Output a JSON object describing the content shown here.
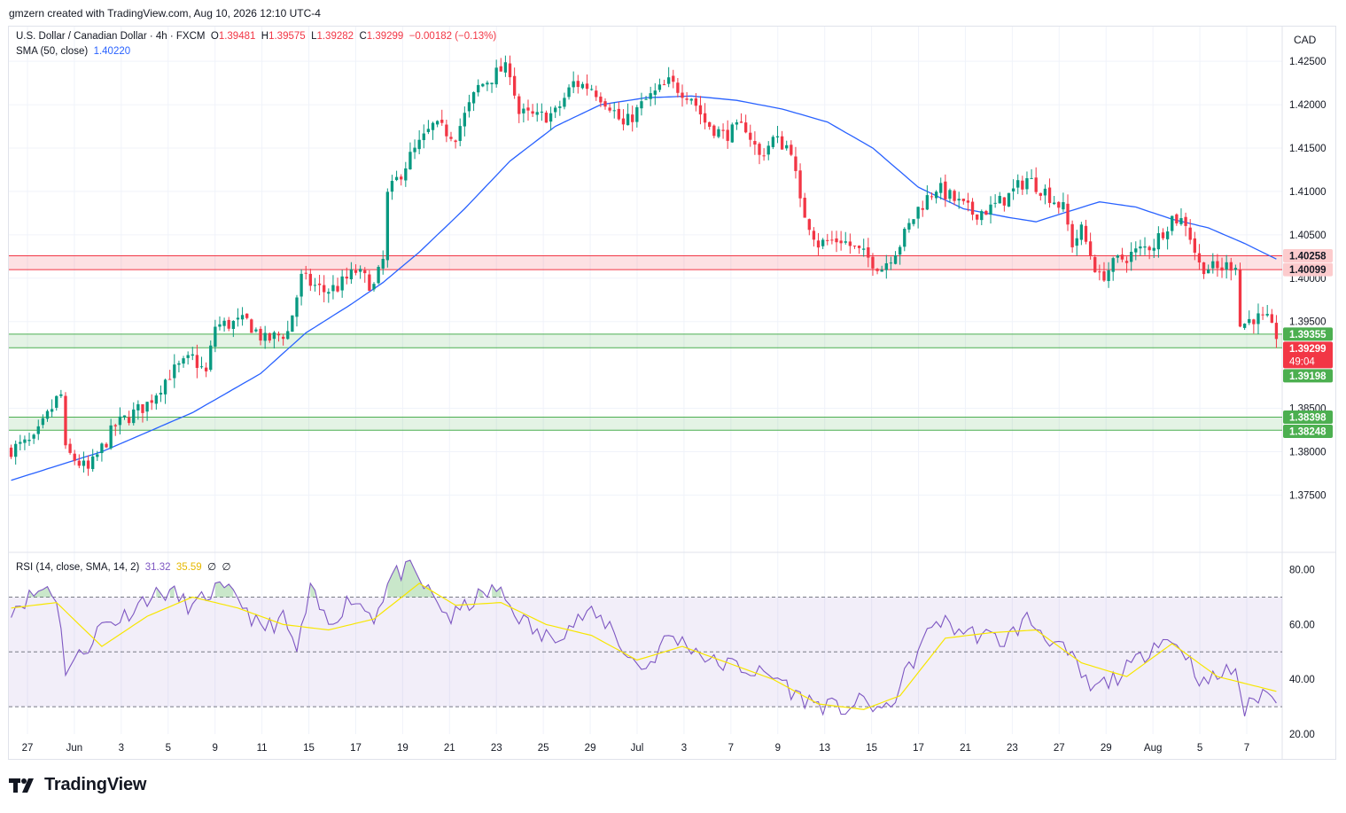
{
  "header": {
    "text": "gmzern created with TradingView.com, Aug 10, 2026 12:10 UTC-4"
  },
  "legend": {
    "symbol": "U.S. Dollar / Canadian Dollar · 4h · FXCM",
    "o_label": "O",
    "o": "1.39481",
    "h_label": "H",
    "h": "1.39575",
    "l_label": "L",
    "l": "1.39282",
    "c_label": "C",
    "c": "1.39299",
    "chg": "−0.00182 (−0.13%)",
    "sma_label": "SMA (50, close)",
    "sma_value": "1.40220",
    "rsi_label": "RSI (14, close, SMA, 14, 2)",
    "rsi_value": "31.32",
    "rsi_ma_value": "35.59",
    "rsi_extra1": "∅",
    "rsi_extra2": "∅"
  },
  "currency": "CAD",
  "footer": {
    "brand": "TradingView"
  },
  "colors": {
    "up": "#089981",
    "down": "#f23645",
    "sma": "#2962ff",
    "rsi": "#7e57c2",
    "rsi_ma": "#f7e600",
    "resistance": "#f23645",
    "support": "#4caf50"
  },
  "chart_data": {
    "type": "candlestick",
    "symbol": "USDCAD",
    "interval": "4h",
    "x_ticks": [
      "27",
      "Jun",
      "3",
      "5",
      "9",
      "11",
      "15",
      "17",
      "19",
      "21",
      "23",
      "25",
      "29",
      "Jul",
      "3",
      "7",
      "9",
      "13",
      "15",
      "17",
      "21",
      "23",
      "27",
      "29",
      "Aug",
      "5",
      "7"
    ],
    "y_ticks": [
      "1.42500",
      "1.42000",
      "1.41500",
      "1.41000",
      "1.40500",
      "1.40000",
      "1.39500",
      "1.38500",
      "1.38000",
      "1.37500"
    ],
    "ylim": [
      1.3685,
      1.429
    ],
    "anchors": [
      {
        "i": 0,
        "v": 1.3803
      },
      {
        "i": 5,
        "v": 1.3812
      },
      {
        "i": 10,
        "v": 1.386
      },
      {
        "i": 11,
        "v": 1.3865
      },
      {
        "i": 12,
        "v": 1.38
      },
      {
        "i": 17,
        "v": 1.3778
      },
      {
        "i": 23,
        "v": 1.383
      },
      {
        "i": 30,
        "v": 1.3855
      },
      {
        "i": 35,
        "v": 1.389
      },
      {
        "i": 40,
        "v": 1.3908
      },
      {
        "i": 43,
        "v": 1.389
      },
      {
        "i": 45,
        "v": 1.3945
      },
      {
        "i": 52,
        "v": 1.395
      },
      {
        "i": 56,
        "v": 1.3928
      },
      {
        "i": 61,
        "v": 1.3938
      },
      {
        "i": 64,
        "v": 1.4
      },
      {
        "i": 69,
        "v": 1.3985
      },
      {
        "i": 72,
        "v": 1.399
      },
      {
        "i": 76,
        "v": 1.4008
      },
      {
        "i": 80,
        "v": 1.399
      },
      {
        "i": 82,
        "v": 1.402
      },
      {
        "i": 83,
        "v": 1.4095
      },
      {
        "i": 88,
        "v": 1.414
      },
      {
        "i": 93,
        "v": 1.4175
      },
      {
        "i": 98,
        "v": 1.4165
      },
      {
        "i": 103,
        "v": 1.422
      },
      {
        "i": 108,
        "v": 1.424
      },
      {
        "i": 110,
        "v": 1.424
      },
      {
        "i": 112,
        "v": 1.419
      },
      {
        "i": 116,
        "v": 1.4185
      },
      {
        "i": 120,
        "v": 1.419
      },
      {
        "i": 124,
        "v": 1.4225
      },
      {
        "i": 128,
        "v": 1.422
      },
      {
        "i": 132,
        "v": 1.42
      },
      {
        "i": 135,
        "v": 1.4175
      },
      {
        "i": 140,
        "v": 1.4205
      },
      {
        "i": 145,
        "v": 1.4225
      },
      {
        "i": 150,
        "v": 1.421
      },
      {
        "i": 153,
        "v": 1.418
      },
      {
        "i": 157,
        "v": 1.4165
      },
      {
        "i": 162,
        "v": 1.4175
      },
      {
        "i": 165,
        "v": 1.414
      },
      {
        "i": 168,
        "v": 1.416
      },
      {
        "i": 172,
        "v": 1.415
      },
      {
        "i": 174,
        "v": 1.4085
      },
      {
        "i": 178,
        "v": 1.404
      },
      {
        "i": 183,
        "v": 1.4045
      },
      {
        "i": 187,
        "v": 1.403
      },
      {
        "i": 192,
        "v": 1.4012
      },
      {
        "i": 196,
        "v": 1.404
      },
      {
        "i": 200,
        "v": 1.408
      },
      {
        "i": 204,
        "v": 1.4105
      },
      {
        "i": 208,
        "v": 1.409
      },
      {
        "i": 212,
        "v": 1.4075
      },
      {
        "i": 216,
        "v": 1.408
      },
      {
        "i": 220,
        "v": 1.4095
      },
      {
        "i": 224,
        "v": 1.4115
      },
      {
        "i": 228,
        "v": 1.41
      },
      {
        "i": 232,
        "v": 1.408
      },
      {
        "i": 234,
        "v": 1.404
      },
      {
        "i": 236,
        "v": 1.4055
      },
      {
        "i": 240,
        "v": 1.4
      },
      {
        "i": 244,
        "v": 1.402
      },
      {
        "i": 248,
        "v": 1.403
      },
      {
        "i": 252,
        "v": 1.404
      },
      {
        "i": 256,
        "v": 1.407
      },
      {
        "i": 259,
        "v": 1.4065
      },
      {
        "i": 262,
        "v": 1.4015
      },
      {
        "i": 266,
        "v": 1.401
      },
      {
        "i": 270,
        "v": 1.4018
      },
      {
        "i": 271,
        "v": 1.3945
      },
      {
        "i": 274,
        "v": 1.3955
      },
      {
        "i": 277,
        "v": 1.395
      },
      {
        "i": 279,
        "v": 1.393
      }
    ],
    "candle_count": 280,
    "last_close": 1.39299,
    "sma": {
      "name": "SMA (50, close)",
      "value": 1.4022
    },
    "sma_points": [
      {
        "i": 0,
        "v": 1.3767
      },
      {
        "i": 20,
        "v": 1.38
      },
      {
        "i": 40,
        "v": 1.3845
      },
      {
        "i": 55,
        "v": 1.389
      },
      {
        "i": 65,
        "v": 1.3937
      },
      {
        "i": 75,
        "v": 1.397
      },
      {
        "i": 82,
        "v": 1.3995
      },
      {
        "i": 90,
        "v": 1.403
      },
      {
        "i": 100,
        "v": 1.408
      },
      {
        "i": 110,
        "v": 1.4135
      },
      {
        "i": 120,
        "v": 1.4175
      },
      {
        "i": 130,
        "v": 1.42
      },
      {
        "i": 140,
        "v": 1.4208
      },
      {
        "i": 150,
        "v": 1.421
      },
      {
        "i": 160,
        "v": 1.4205
      },
      {
        "i": 170,
        "v": 1.4195
      },
      {
        "i": 180,
        "v": 1.418
      },
      {
        "i": 190,
        "v": 1.415
      },
      {
        "i": 200,
        "v": 1.4105
      },
      {
        "i": 210,
        "v": 1.408
      },
      {
        "i": 220,
        "v": 1.407
      },
      {
        "i": 226,
        "v": 1.4065
      },
      {
        "i": 232,
        "v": 1.4075
      },
      {
        "i": 240,
        "v": 1.4088
      },
      {
        "i": 248,
        "v": 1.4082
      },
      {
        "i": 256,
        "v": 1.4068
      },
      {
        "i": 264,
        "v": 1.4058
      },
      {
        "i": 272,
        "v": 1.404
      },
      {
        "i": 279,
        "v": 1.4022
      }
    ],
    "zones": [
      {
        "type": "resistance",
        "top": 1.40258,
        "bottom": 1.40099
      },
      {
        "type": "support",
        "top": 1.39355,
        "bottom": 1.39198
      },
      {
        "type": "support",
        "top": 1.38398,
        "bottom": 1.38248
      }
    ],
    "price_labels": [
      {
        "value": "1.40258",
        "kind": "resistance"
      },
      {
        "value": "1.40099",
        "kind": "resistance"
      },
      {
        "value": "1.39355",
        "kind": "support"
      },
      {
        "value": "1.39299",
        "kind": "last",
        "countdown": "49:04"
      },
      {
        "value": "1.39198",
        "kind": "support"
      },
      {
        "value": "1.38398",
        "kind": "support"
      },
      {
        "value": "1.38248",
        "kind": "support"
      }
    ],
    "rsi": {
      "name": "RSI (14, close, SMA, 14, 2)",
      "value": 31.32,
      "ma_value": 35.59,
      "ylim": [
        20,
        86
      ],
      "y_ticks": [
        "80.00",
        "60.00",
        "40.00",
        "20.00"
      ],
      "levels": [
        70,
        50,
        30
      ],
      "points": [
        {
          "i": 0,
          "v": 66
        },
        {
          "i": 8,
          "v": 74
        },
        {
          "i": 10,
          "v": 70
        },
        {
          "i": 12,
          "v": 44
        },
        {
          "i": 16,
          "v": 50
        },
        {
          "i": 20,
          "v": 60
        },
        {
          "i": 24,
          "v": 62
        },
        {
          "i": 30,
          "v": 70
        },
        {
          "i": 35,
          "v": 72
        },
        {
          "i": 40,
          "v": 66
        },
        {
          "i": 45,
          "v": 73
        },
        {
          "i": 50,
          "v": 70
        },
        {
          "i": 55,
          "v": 58
        },
        {
          "i": 60,
          "v": 62
        },
        {
          "i": 63,
          "v": 50
        },
        {
          "i": 66,
          "v": 72
        },
        {
          "i": 70,
          "v": 60
        },
        {
          "i": 75,
          "v": 70
        },
        {
          "i": 80,
          "v": 63
        },
        {
          "i": 84,
          "v": 78
        },
        {
          "i": 88,
          "v": 80
        },
        {
          "i": 92,
          "v": 72
        },
        {
          "i": 97,
          "v": 62
        },
        {
          "i": 102,
          "v": 69
        },
        {
          "i": 107,
          "v": 73
        },
        {
          "i": 112,
          "v": 63
        },
        {
          "i": 117,
          "v": 55
        },
        {
          "i": 122,
          "v": 58
        },
        {
          "i": 127,
          "v": 64
        },
        {
          "i": 132,
          "v": 60
        },
        {
          "i": 136,
          "v": 48
        },
        {
          "i": 140,
          "v": 44
        },
        {
          "i": 145,
          "v": 56
        },
        {
          "i": 150,
          "v": 52
        },
        {
          "i": 155,
          "v": 46
        },
        {
          "i": 160,
          "v": 45
        },
        {
          "i": 165,
          "v": 42
        },
        {
          "i": 170,
          "v": 40
        },
        {
          "i": 173,
          "v": 34
        },
        {
          "i": 178,
          "v": 31
        },
        {
          "i": 183,
          "v": 29
        },
        {
          "i": 188,
          "v": 32
        },
        {
          "i": 193,
          "v": 28
        },
        {
          "i": 198,
          "v": 44
        },
        {
          "i": 204,
          "v": 62
        },
        {
          "i": 209,
          "v": 58
        },
        {
          "i": 214,
          "v": 56
        },
        {
          "i": 219,
          "v": 54
        },
        {
          "i": 224,
          "v": 62
        },
        {
          "i": 229,
          "v": 55
        },
        {
          "i": 234,
          "v": 47
        },
        {
          "i": 238,
          "v": 36
        },
        {
          "i": 243,
          "v": 40
        },
        {
          "i": 248,
          "v": 46
        },
        {
          "i": 253,
          "v": 55
        },
        {
          "i": 258,
          "v": 52
        },
        {
          "i": 263,
          "v": 38
        },
        {
          "i": 267,
          "v": 42
        },
        {
          "i": 270,
          "v": 44
        },
        {
          "i": 272,
          "v": 28
        },
        {
          "i": 276,
          "v": 36
        },
        {
          "i": 279,
          "v": 31
        }
      ],
      "ma_points": [
        {
          "i": 0,
          "v": 66
        },
        {
          "i": 10,
          "v": 68
        },
        {
          "i": 20,
          "v": 52
        },
        {
          "i": 30,
          "v": 63
        },
        {
          "i": 40,
          "v": 70
        },
        {
          "i": 50,
          "v": 66
        },
        {
          "i": 60,
          "v": 60
        },
        {
          "i": 70,
          "v": 58
        },
        {
          "i": 80,
          "v": 62
        },
        {
          "i": 90,
          "v": 75
        },
        {
          "i": 98,
          "v": 67
        },
        {
          "i": 108,
          "v": 68
        },
        {
          "i": 118,
          "v": 60
        },
        {
          "i": 128,
          "v": 56
        },
        {
          "i": 138,
          "v": 47
        },
        {
          "i": 148,
          "v": 52
        },
        {
          "i": 158,
          "v": 46
        },
        {
          "i": 168,
          "v": 40
        },
        {
          "i": 178,
          "v": 31
        },
        {
          "i": 188,
          "v": 29
        },
        {
          "i": 196,
          "v": 34
        },
        {
          "i": 206,
          "v": 55
        },
        {
          "i": 216,
          "v": 57
        },
        {
          "i": 226,
          "v": 58
        },
        {
          "i": 236,
          "v": 46
        },
        {
          "i": 246,
          "v": 41
        },
        {
          "i": 256,
          "v": 53
        },
        {
          "i": 266,
          "v": 41
        },
        {
          "i": 279,
          "v": 35.6
        }
      ]
    }
  }
}
